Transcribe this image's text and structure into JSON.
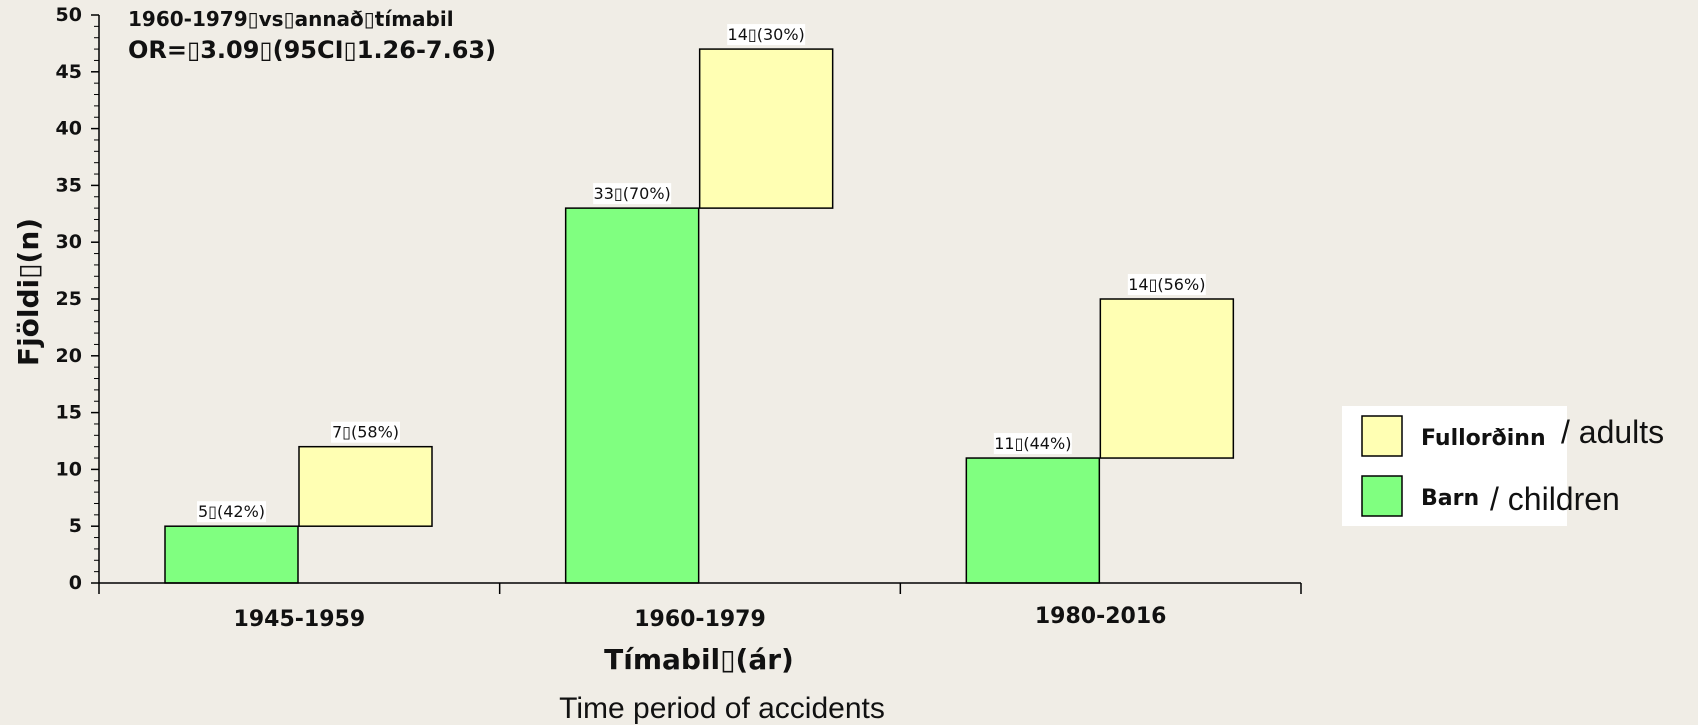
{
  "chart_data": {
    "type": "bar",
    "stacked": true,
    "categories": [
      "1945-1959",
      "1960-1979",
      "1980-2016"
    ],
    "series": [
      {
        "name": "Barn",
        "name_en": "/ children",
        "color": "#80ff80",
        "values": [
          5,
          33,
          11
        ],
        "labels": [
          "5▯(42%)",
          "33▯(70%)",
          "11▯(44%)"
        ]
      },
      {
        "name": "Fullorðinn",
        "name_en": "/ adults",
        "color": "#ffffb3",
        "values": [
          7,
          14,
          14
        ],
        "labels": [
          "7▯(58%)",
          "14▯(30%)",
          "14▯(56%)"
        ]
      }
    ],
    "ylim": [
      0,
      50
    ],
    "yticks": [
      "0",
      "5",
      "10",
      "15",
      "20",
      "25",
      "30",
      "35",
      "40",
      "45",
      "50"
    ],
    "ylabel": "Fjöldi▯(n)",
    "xlabel": "Tímabil▯(ár)",
    "xlabel_sub": "Time period of accidents",
    "annotation": [
      "1960-1979▯vs▯annað▯tímabil",
      "OR=▯3.09▯(95CI▯1.26-7.63)"
    ],
    "legend_position": "right"
  }
}
